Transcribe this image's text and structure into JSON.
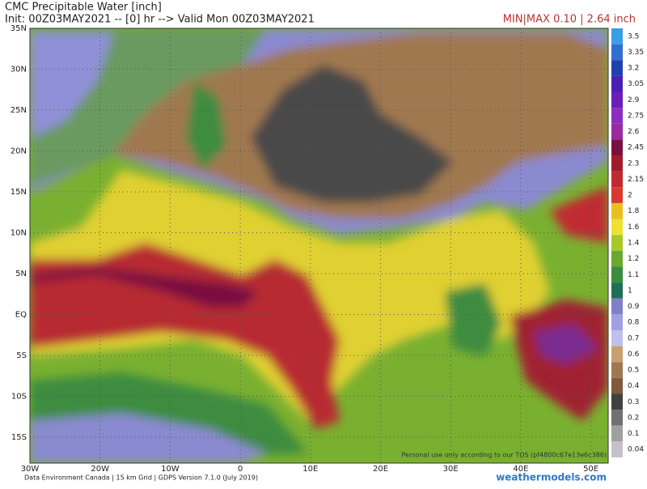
{
  "header": {
    "title": "CMC Precipitable Water [inch]",
    "subtitle": "Init: 00Z03MAY2021 -- [0] hr --> Valid Mon 00Z03MAY2021",
    "minmax": "MIN|MAX 0.10 | 2.64 inch"
  },
  "map": {
    "lat_labels": [
      "35N",
      "30N",
      "25N",
      "20N",
      "15N",
      "10N",
      "5N",
      "EQ",
      "5S",
      "10S",
      "15S"
    ],
    "lon_labels": [
      "30W",
      "20W",
      "10W",
      "0",
      "10E",
      "20E",
      "30E",
      "40E",
      "50E"
    ],
    "watermark": "Personal use only according to our TOS (pf4800c67e13e6c386)"
  },
  "colorbar": {
    "labels": [
      "3.5",
      "3.35",
      "3.2",
      "3.05",
      "2.9",
      "2.75",
      "2.6",
      "2.45",
      "2.3",
      "2.15",
      "2",
      "1.8",
      "1.6",
      "1.4",
      "1.2",
      "1.1",
      "1",
      "0.9",
      "0.8",
      "0.7",
      "0.6",
      "0.5",
      "0.4",
      "0.3",
      "0.2",
      "0.1",
      "0.04"
    ],
    "colors": [
      "#3a9ee6",
      "#2f6fd0",
      "#2040b0",
      "#4a1fb5",
      "#6a1fb8",
      "#8a2fc0",
      "#9a2aa0",
      "#7a1040",
      "#a01c2c",
      "#c02a30",
      "#d83a2e",
      "#e8c020",
      "#f0e030",
      "#a8c828",
      "#6aa830",
      "#3c8c40",
      "#1f6e58",
      "#8080c8",
      "#a0a0e0",
      "#c0c0ee",
      "#c8a070",
      "#a07850",
      "#805a3c",
      "#404040",
      "#707070",
      "#a0a0a0",
      "#c8c0c8"
    ]
  },
  "footer": {
    "credit": "Data Environment Canada | 15 km Grid | GDPS Version 7.1.0 (July 2019)",
    "site": "weathermodels.com"
  }
}
